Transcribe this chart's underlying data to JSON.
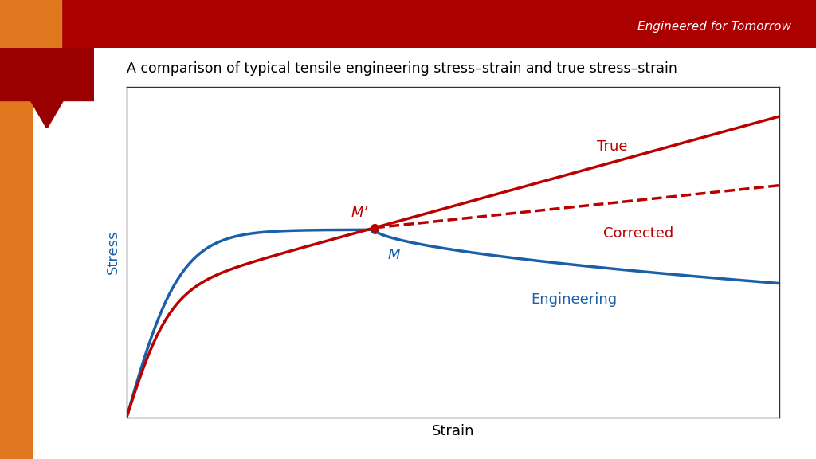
{
  "title": "A comparison of typical tensile engineering stress–strain and true stress–strain",
  "xlabel": "Strain",
  "ylabel": "Stress",
  "header_text": "Engineered for Tomorrow",
  "header_text_color": "#ffffff",
  "header_dark_color": "#AA0000",
  "header_orange_color": "#E07820",
  "sidebar_color": "#E07820",
  "tab_dark_color": "#9B0000",
  "true_color": "#BB0000",
  "corrected_color": "#BB0000",
  "engineering_color": "#1A5FA8",
  "point_M_label": "M",
  "point_Mp_label": "M’",
  "true_label": "True",
  "corrected_label": "Corrected",
  "engineering_label": "Engineering",
  "title_fontsize": 12.5,
  "axis_label_fontsize": 13,
  "annotation_fontsize": 13,
  "curve_lw": 2.5
}
